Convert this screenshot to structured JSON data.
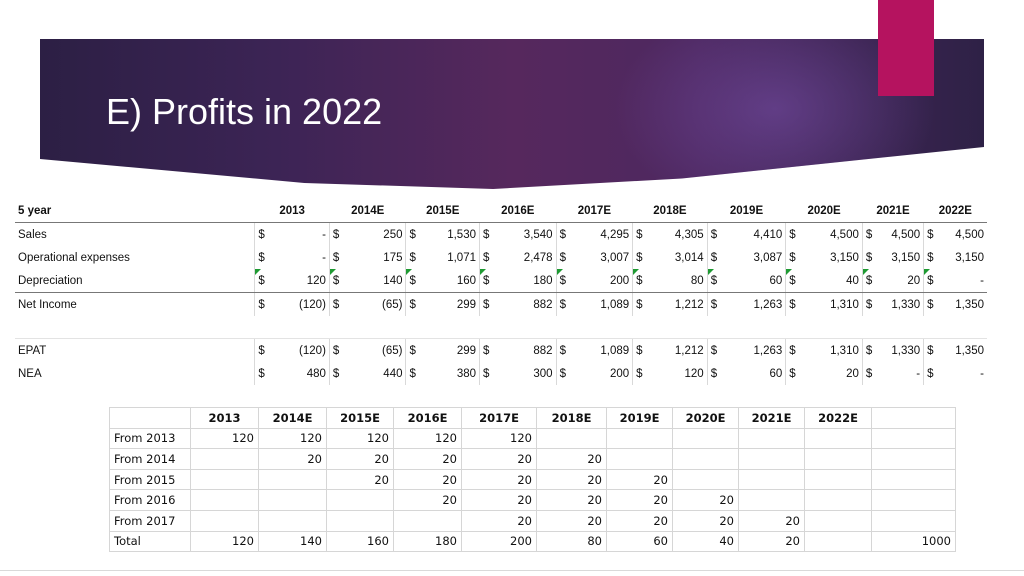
{
  "slide": {
    "title": "E) Profits in 2022",
    "accent_color": "#b5135f"
  },
  "table1": {
    "header_label": "5 year",
    "years": [
      "2013",
      "2014E",
      "2015E",
      "2016E",
      "2017E",
      "2018E",
      "2019E",
      "2020E",
      "2021E",
      "2022E"
    ],
    "rows": [
      {
        "label": "Sales",
        "values": [
          "-",
          "250",
          "1,530",
          "3,540",
          "4,295",
          "4,305",
          "4,410",
          "4,500",
          "4,500",
          "4,500"
        ]
      },
      {
        "label": "Operational expenses",
        "values": [
          "-",
          "175",
          "1,071",
          "2,478",
          "3,007",
          "3,014",
          "3,087",
          "3,150",
          "3,150",
          "3,150"
        ]
      },
      {
        "label": "Depreciation",
        "values": [
          "120",
          "140",
          "160",
          "180",
          "200",
          "80",
          "60",
          "40",
          "20",
          "-"
        ]
      },
      {
        "label": "Net Income",
        "values": [
          "(120)",
          "(65)",
          "299",
          "882",
          "1,089",
          "1,212",
          "1,263",
          "1,310",
          "1,330",
          "1,350"
        ]
      },
      {
        "label": "EPAT",
        "values": [
          "(120)",
          "(65)",
          "299",
          "882",
          "1,089",
          "1,212",
          "1,263",
          "1,310",
          "1,330",
          "1,350"
        ]
      },
      {
        "label": "NEA",
        "values": [
          "480",
          "440",
          "380",
          "300",
          "200",
          "120",
          "60",
          "20",
          "-",
          "-"
        ]
      }
    ],
    "currency": "$"
  },
  "table2": {
    "years": [
      "2013",
      "2014E",
      "2015E",
      "2016E",
      "2017E",
      "2018E",
      "2019E",
      "2020E",
      "2021E",
      "2022E"
    ],
    "rows": [
      {
        "label": "From 2013",
        "values": [
          "120",
          "120",
          "120",
          "120",
          "120",
          "",
          "",
          "",
          "",
          "",
          ""
        ]
      },
      {
        "label": "From 2014",
        "values": [
          "",
          "20",
          "20",
          "20",
          "20",
          "20",
          "",
          "",
          "",
          "",
          ""
        ]
      },
      {
        "label": "From 2015",
        "values": [
          "",
          "",
          "20",
          "20",
          "20",
          "20",
          "20",
          "",
          "",
          "",
          ""
        ]
      },
      {
        "label": "From 2016",
        "values": [
          "",
          "",
          "",
          "20",
          "20",
          "20",
          "20",
          "20",
          "",
          "",
          ""
        ]
      },
      {
        "label": "From 2017",
        "values": [
          "",
          "",
          "",
          "",
          "20",
          "20",
          "20",
          "20",
          "20",
          "",
          ""
        ]
      },
      {
        "label": "Total",
        "values": [
          "120",
          "140",
          "160",
          "180",
          "200",
          "80",
          "60",
          "40",
          "20",
          "",
          "1000"
        ]
      }
    ]
  }
}
